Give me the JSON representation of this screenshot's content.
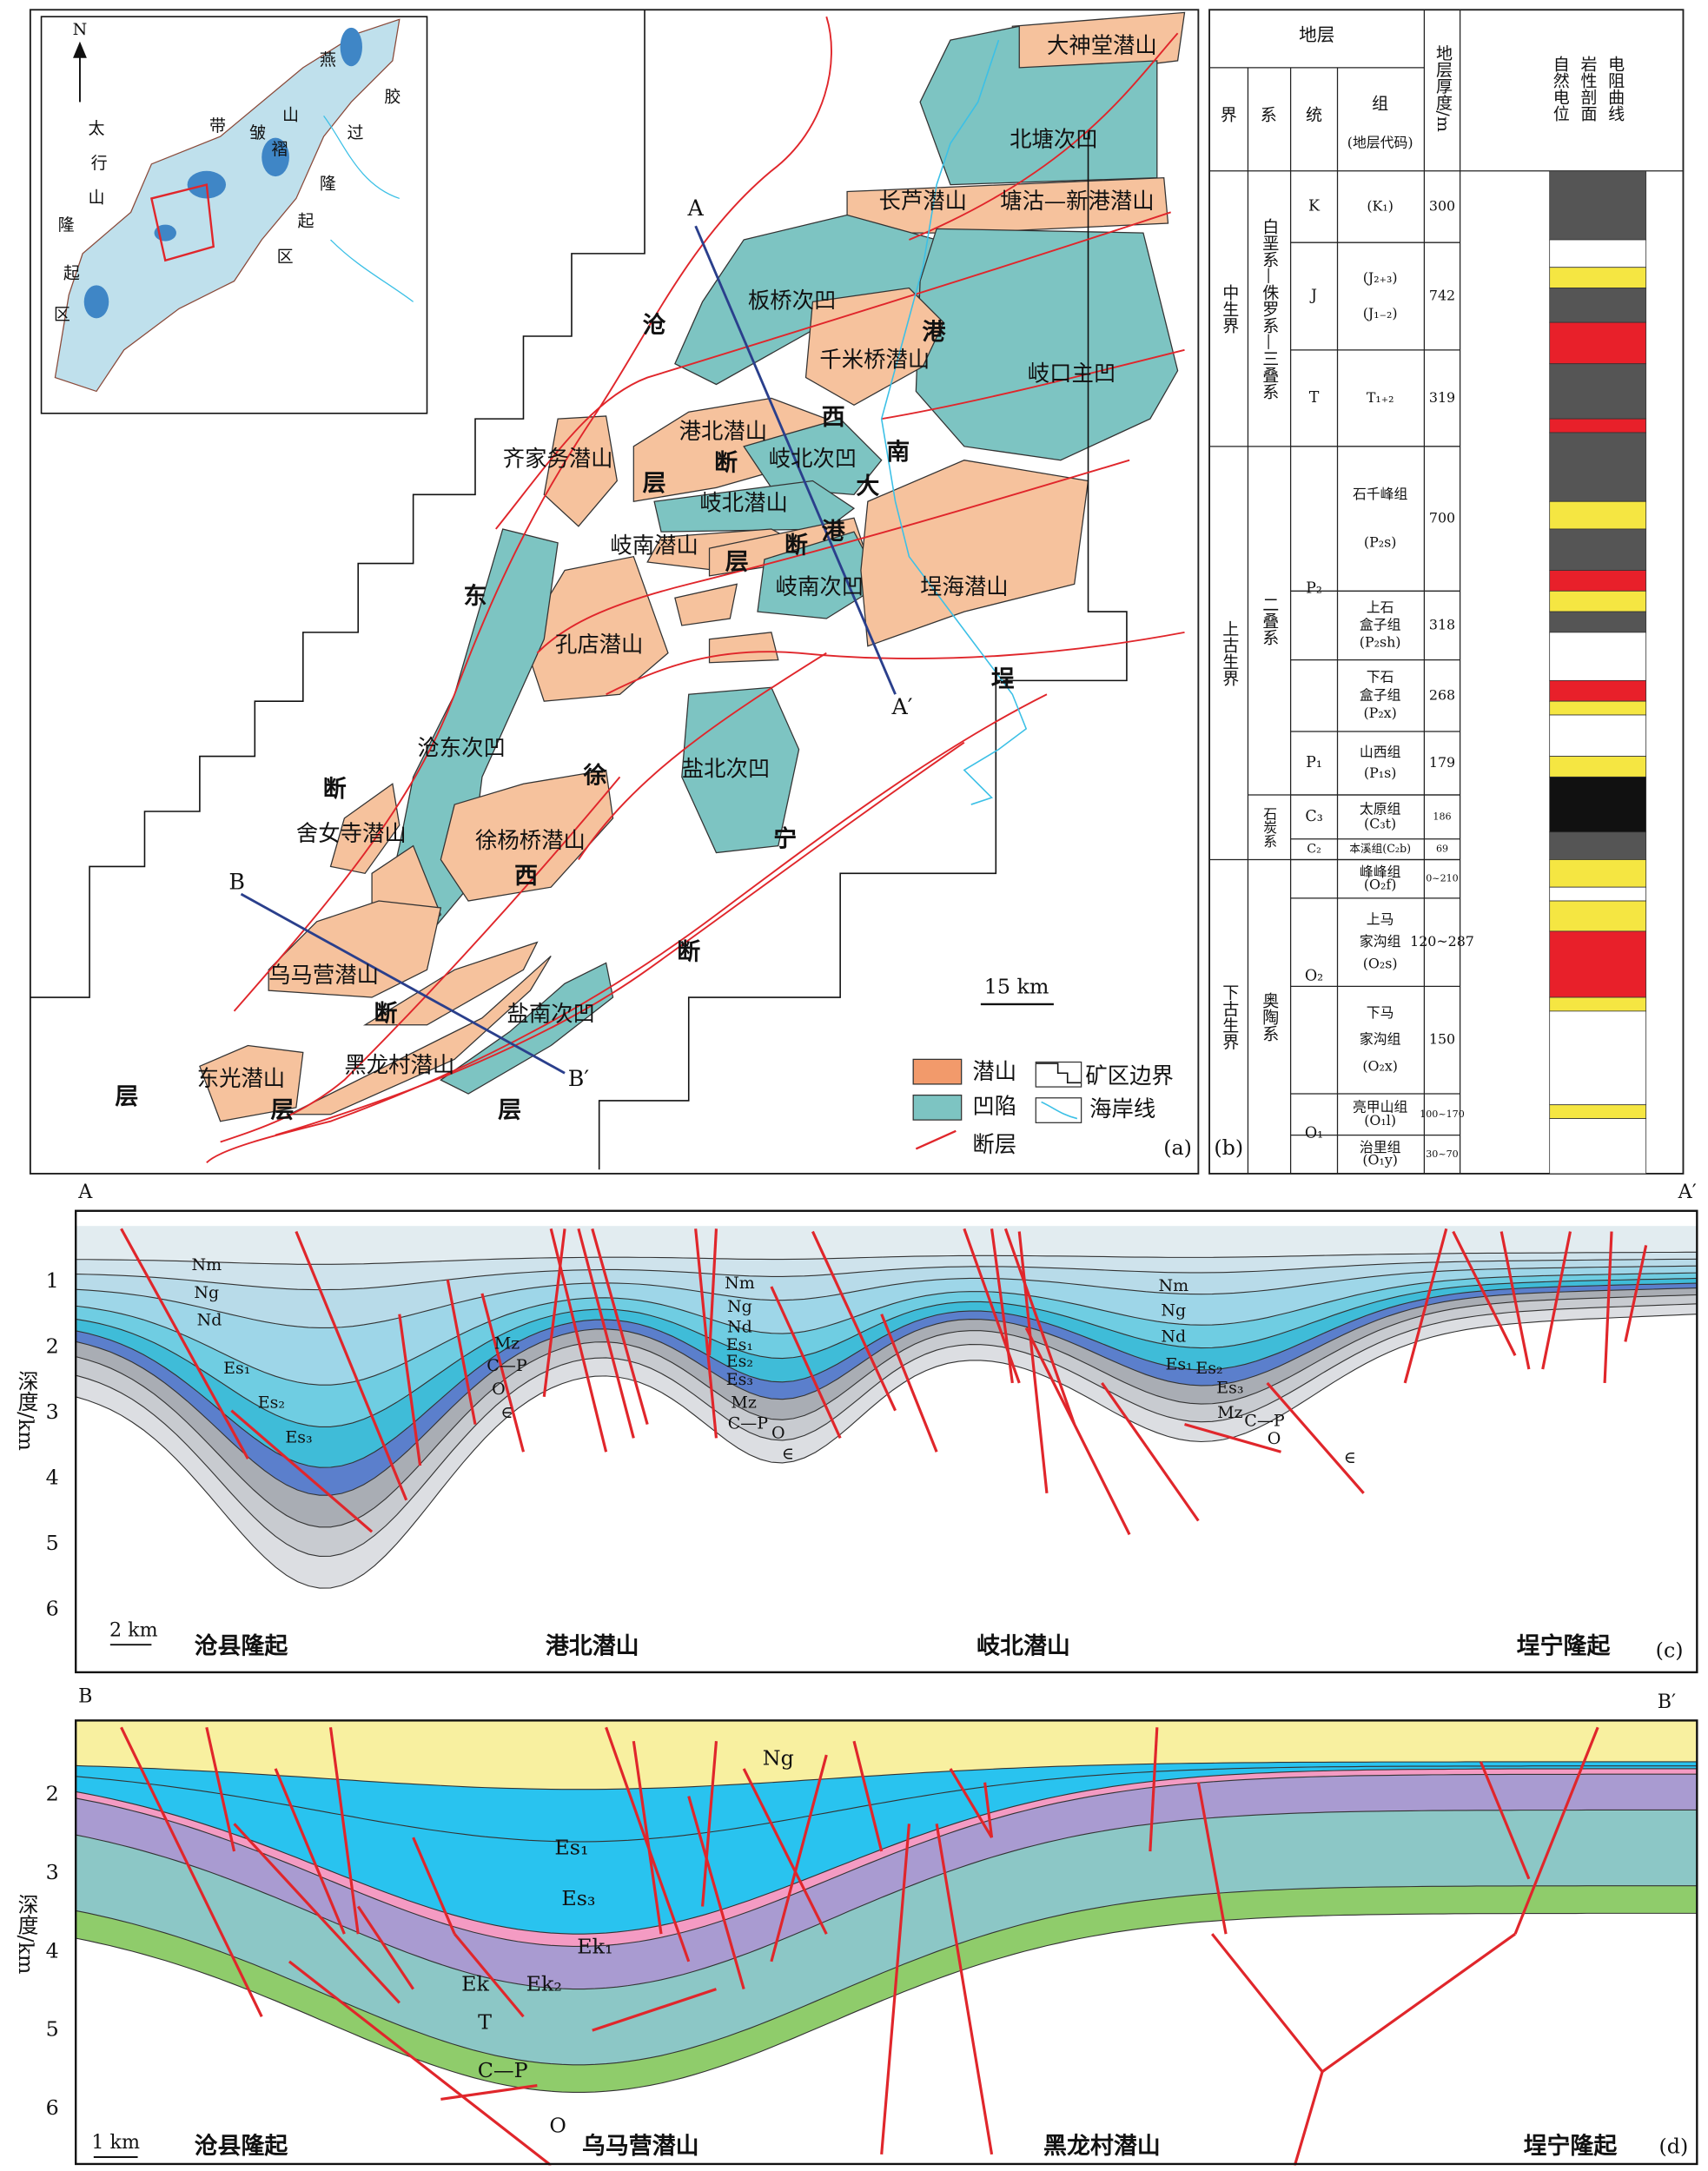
{
  "map": {
    "inset_labels": [
      "N",
      "燕",
      "胶",
      "山",
      "过",
      "褶",
      "带",
      "皱",
      "太",
      "行",
      "山",
      "隆",
      "起",
      "区",
      "隆",
      "起",
      "区"
    ],
    "units": [
      "大神堂潜山",
      "北塘次凹",
      "长芦潜山",
      "塘沽—新港潜山",
      "板桥次凹",
      "千米桥潜山",
      "岐口主凹",
      "港北潜山",
      "岐北次凹",
      "齐家务潜山",
      "岐北潜山",
      "岐南潜山",
      "岐南次凹",
      "埕海潜山",
      "孔店潜山",
      "沧东次凹",
      "盐北次凹",
      "舍女寺潜山",
      "徐杨桥潜山",
      "乌马营潜山",
      "盐南次凹",
      "黑龙村潜山",
      "东光潜山"
    ],
    "fault_zone_labels": [
      "沧",
      "港",
      "西",
      "南",
      "大",
      "港",
      "断",
      "层",
      "断",
      "层",
      "东",
      "断",
      "徐",
      "西",
      "埕",
      "宁",
      "断",
      "断",
      "层",
      "层",
      "层"
    ],
    "profile_labels": [
      "A",
      "A′",
      "B",
      "B′"
    ],
    "scale": "15 km",
    "legend": [
      "潜山",
      "凹陷",
      "断层",
      "矿区边界",
      "海岸线"
    ],
    "panel": "(a)"
  },
  "column": {
    "header": {
      "strata": "地层",
      "era": "界",
      "system": "系",
      "series": "统",
      "formation": "组",
      "code": "(地层代码)",
      "thickness": "地层厚度/m",
      "sp": "自然电位",
      "lithology": "岩性剖面",
      "resistivity": "电阻曲线"
    },
    "eras": [
      "中生界",
      "上古生界",
      "下古生界"
    ],
    "systems": [
      "白垩系—侏罗系—三叠系",
      "二叠系",
      "石炭系",
      "奥陶系"
    ],
    "series": [
      "K",
      "J",
      "T",
      "P₂",
      "P₁",
      "C₃",
      "C₂",
      "O₂",
      "O₁"
    ],
    "rows": [
      {
        "lines": [
          "(K₁)"
        ],
        "thickness": 300
      },
      {
        "lines": [
          "(J₂₊₃)",
          "(J₁₋₂)"
        ],
        "thickness": 742
      },
      {
        "lines": [
          "T₁₊₂"
        ],
        "thickness": 319
      },
      {
        "lines": [
          "石千峰组",
          "(P₂s)"
        ],
        "thickness": 700
      },
      {
        "lines": [
          "上石",
          "盒子组",
          "(P₂sh)"
        ],
        "thickness": 318
      },
      {
        "lines": [
          "下石",
          "盒子组",
          "(P₂x)"
        ],
        "thickness": 268
      },
      {
        "lines": [
          "山西组",
          "(P₁s)"
        ],
        "thickness": 179
      },
      {
        "lines": [
          "太原组",
          "(C₃t)"
        ],
        "thickness": 186
      },
      {
        "lines": [
          "本溪组(C₂b)"
        ],
        "thickness": 69
      },
      {
        "lines": [
          "峰峰组",
          "(O₂f)"
        ],
        "thickness": "0~210"
      },
      {
        "lines": [
          "上马",
          "家沟组",
          "(O₂s)"
        ],
        "thickness": "120~287"
      },
      {
        "lines": [
          "下马",
          "家沟组",
          "(O₂x)"
        ],
        "thickness": 150
      },
      {
        "lines": [
          "亮甲山组",
          "(O₁l)"
        ],
        "thickness": "100~170"
      },
      {
        "lines": [
          "治里组",
          "(O₁y)"
        ],
        "thickness": "30~70"
      }
    ],
    "panel": "(b)"
  },
  "section_c": {
    "start": "A",
    "end": "A′",
    "axis_label": "深度/km",
    "depth_ticks": [
      1,
      2,
      3,
      4,
      5,
      6
    ],
    "scale": "2 km",
    "layer_labels": [
      "Nm",
      "Ng",
      "Nd",
      "Es₁",
      "Es₂",
      "Es₃",
      "Mz",
      "C—P",
      "O",
      "∈",
      "Nm",
      "Ng",
      "Nd",
      "Es₁",
      "Es₂",
      "Es₃",
      "Mz",
      "C—P",
      "O",
      "∈",
      "Nm",
      "Ng",
      "Nd",
      "Es₁",
      "Es₂",
      "Es₃",
      "Mz",
      "C—P",
      "O",
      "∈"
    ],
    "places": [
      "沧县隆起",
      "港北潜山",
      "岐北潜山",
      "埕宁隆起"
    ],
    "panel": "(c)"
  },
  "section_d": {
    "start": "B",
    "end": "B′",
    "axis_label": "深度/km",
    "depth_ticks": [
      2,
      3,
      4,
      5,
      6
    ],
    "scale": "1 km",
    "layer_labels": [
      "Ng",
      "Es₁",
      "Es₃",
      "Ek₁",
      "Ek",
      "Ek₂",
      "T",
      "C—P",
      "O"
    ],
    "places": [
      "沧县隆起",
      "乌马营潜山",
      "黑龙村潜山",
      "埕宁隆起"
    ],
    "panel": "(d)"
  }
}
